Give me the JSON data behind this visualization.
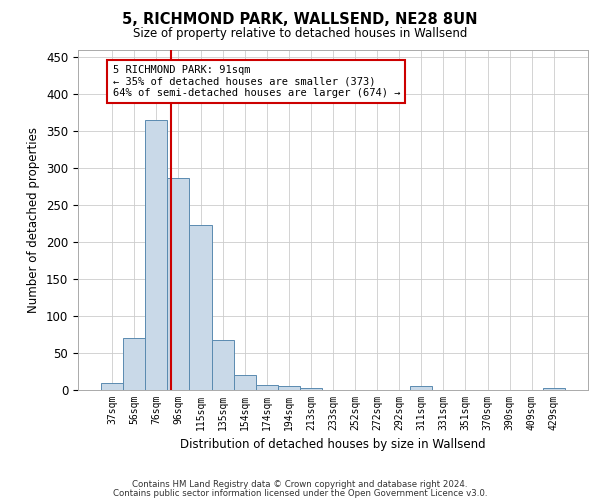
{
  "title": "5, RICHMOND PARK, WALLSEND, NE28 8UN",
  "subtitle": "Size of property relative to detached houses in Wallsend",
  "xlabel": "Distribution of detached houses by size in Wallsend",
  "ylabel": "Number of detached properties",
  "footer_line1": "Contains HM Land Registry data © Crown copyright and database right 2024.",
  "footer_line2": "Contains public sector information licensed under the Open Government Licence v3.0.",
  "categories": [
    "37sqm",
    "56sqm",
    "76sqm",
    "96sqm",
    "115sqm",
    "135sqm",
    "154sqm",
    "174sqm",
    "194sqm",
    "213sqm",
    "233sqm",
    "252sqm",
    "272sqm",
    "292sqm",
    "311sqm",
    "331sqm",
    "351sqm",
    "370sqm",
    "390sqm",
    "409sqm",
    "429sqm"
  ],
  "values": [
    10,
    70,
    365,
    287,
    223,
    67,
    20,
    7,
    6,
    3,
    0,
    0,
    0,
    0,
    5,
    0,
    0,
    0,
    0,
    0,
    3
  ],
  "bar_color": "#c9d9e8",
  "bar_edge_color": "#5a8ab0",
  "ylim": [
    0,
    460
  ],
  "yticks": [
    0,
    50,
    100,
    150,
    200,
    250,
    300,
    350,
    400,
    450
  ],
  "property_line_x": 2.65,
  "property_line_color": "#cc0000",
  "annotation_line1": "5 RICHMOND PARK: 91sqm",
  "annotation_line2": "← 35% of detached houses are smaller (373)",
  "annotation_line3": "64% of semi-detached houses are larger (674) →",
  "annotation_box_color": "#cc0000",
  "background_color": "#ffffff",
  "grid_color": "#cccccc"
}
